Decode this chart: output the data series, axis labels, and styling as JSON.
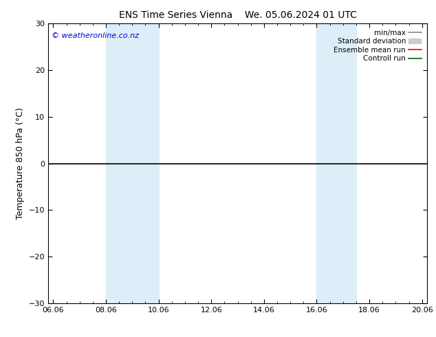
{
  "title_left": "ENS Time Series Vienna",
  "title_right": "We. 05.06.2024 01 UTC",
  "ylabel": "Temperature 850 hPa (°C)",
  "ylim": [
    -30,
    30
  ],
  "yticks": [
    -30,
    -20,
    -10,
    0,
    10,
    20,
    30
  ],
  "xtick_labels": [
    "06.06",
    "08.06",
    "10.06",
    "12.06",
    "14.06",
    "16.06",
    "18.06",
    "20.06"
  ],
  "xtick_positions": [
    0,
    2,
    4,
    6,
    8,
    10,
    12,
    14
  ],
  "xlim": [
    -0.2,
    14.2
  ],
  "shaded_regions": [
    {
      "xmin": 2.0,
      "xmax": 3.3,
      "color": "#ddeeff",
      "alpha": 1.0
    },
    {
      "xmin": 3.3,
      "xmax": 4.0,
      "color": "#c8e0f8",
      "alpha": 1.0
    },
    {
      "xmin": 10.0,
      "xmax": 10.5,
      "color": "#ddeeff",
      "alpha": 1.0
    },
    {
      "xmin": 10.5,
      "xmax": 11.5,
      "color": "#c8e0f8",
      "alpha": 1.0
    }
  ],
  "hline_y": 0,
  "hline_color": "#000000",
  "green_line_y": 0,
  "green_line_color": "#006600",
  "watermark": "© weatheronline.co.nz",
  "watermark_color": "#0000cc",
  "background_color": "#ffffff",
  "plot_bg_color": "#ffffff",
  "legend_items": [
    {
      "label": "min/max",
      "color": "#888888",
      "lw": 1.2,
      "style": "line"
    },
    {
      "label": "Standard deviation",
      "color": "#cccccc",
      "lw": 6,
      "style": "thick"
    },
    {
      "label": "Ensemble mean run",
      "color": "#ff0000",
      "lw": 1.2,
      "style": "line"
    },
    {
      "label": "Controll run",
      "color": "#006600",
      "lw": 1.2,
      "style": "line"
    }
  ],
  "title_fontsize": 10,
  "axis_label_fontsize": 9,
  "tick_label_fontsize": 8,
  "legend_fontsize": 7.5,
  "watermark_fontsize": 8
}
